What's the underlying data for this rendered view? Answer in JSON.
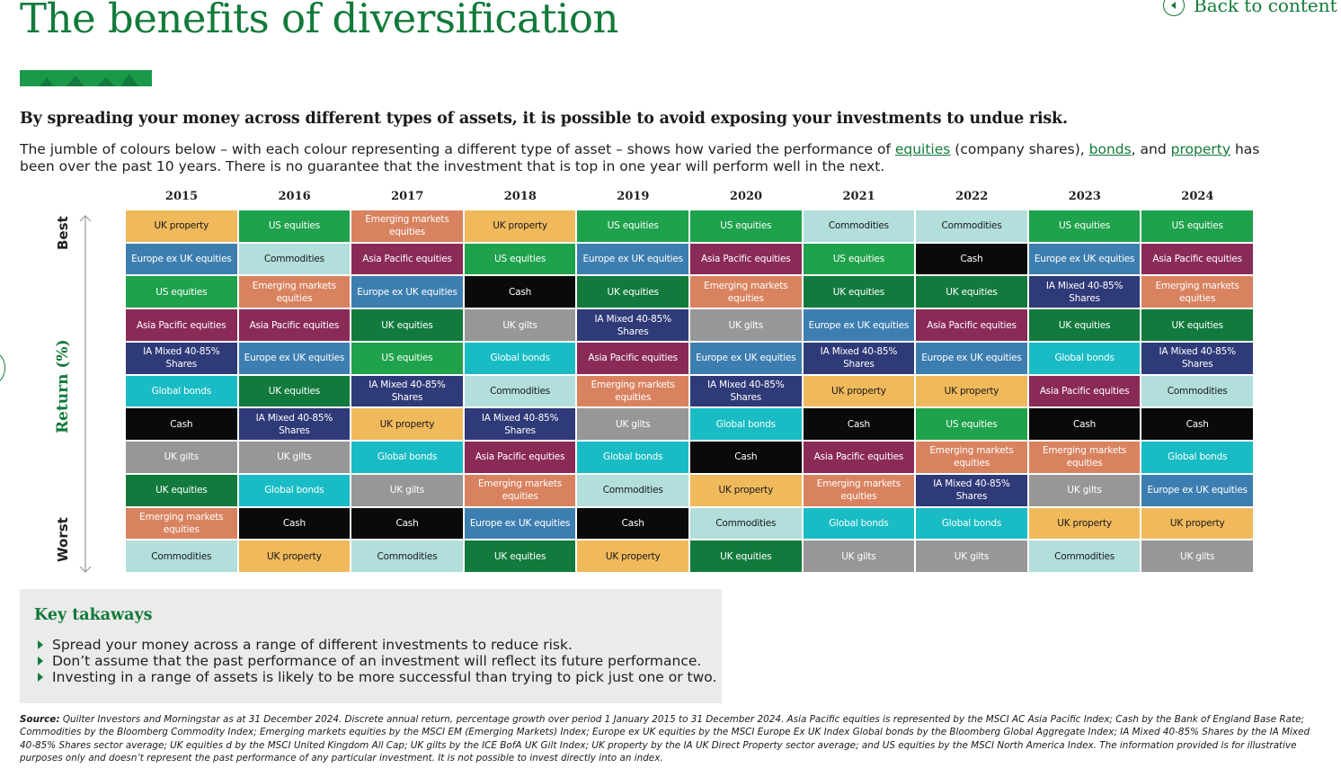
{
  "header": {
    "title": "The benefits of diversification",
    "back_link": "Back to content",
    "back_icon": "chevron-left-icon"
  },
  "lead": "By spreading your money across different types of assets, it is possible to avoid exposing your investments to undue risk.",
  "intro": {
    "text_1": "The jumble of colours below – with each colour representing a different type of asset – shows how varied the performance of ",
    "link_equities": "equities",
    "text_2": " (company shares), ",
    "link_bonds": "bonds",
    "text_3": ", and ",
    "link_property": "property",
    "text_4": " has been over the past 10 years. There is no guarantee that the investment that is top in one year will perform well in the next."
  },
  "colors": {
    "brand": "#127a3a",
    "UK property": "#f0b95c",
    "US equities": "#1ea24b",
    "Emerging markets equities": "#d9825f",
    "Europe ex UK equities": "#3d7eb0",
    "Commodities": "#b2dedb",
    "Asia Pacific equities": "#8a2a57",
    "Cash": "#0a0a0a",
    "UK equities": "#117a3c",
    "UK gilts": "#979797",
    "IA Mixed 40-85% Shares": "#2f3a78",
    "Global bonds": "#19bcc4"
  },
  "text_colors": {
    "UK property": "#1a1a1a",
    "Commodities": "#1a1a1a",
    "default": "#ffffff"
  },
  "chart_data": {
    "type": "table",
    "xlabel": "",
    "ylabel": "Return (%)",
    "y_top_label": "Best",
    "y_bottom_label": "Worst",
    "years": [
      "2015",
      "2016",
      "2017",
      "2018",
      "2019",
      "2020",
      "2021",
      "2022",
      "2023",
      "2024"
    ],
    "rankings": [
      [
        "UK property",
        "Europe ex UK equities",
        "US equities",
        "Asia Pacific equities",
        "IA Mixed 40-85% Shares",
        "Global bonds",
        "Cash",
        "UK gilts",
        "UK equities",
        "Emerging markets equities",
        "Commodities"
      ],
      [
        "US equities",
        "Commodities",
        "Emerging markets equities",
        "Asia Pacific equities",
        "Europe ex UK equities",
        "UK equities",
        "IA Mixed 40-85% Shares",
        "UK gilts",
        "Global bonds",
        "Cash",
        "UK property"
      ],
      [
        "Emerging markets equities",
        "Asia Pacific equities",
        "Europe ex UK equities",
        "UK equities",
        "US equities",
        "IA Mixed 40-85% Shares",
        "UK property",
        "Global bonds",
        "UK gilts",
        "Cash",
        "Commodities"
      ],
      [
        "UK property",
        "US equities",
        "Cash",
        "UK gilts",
        "Global bonds",
        "Commodities",
        "IA Mixed 40-85% Shares",
        "Asia Pacific equities",
        "Emerging markets equities",
        "Europe ex UK equities",
        "UK equities"
      ],
      [
        "US equities",
        "Europe ex UK equities",
        "UK equities",
        "IA Mixed 40-85% Shares",
        "Asia Pacific equities",
        "Emerging markets equities",
        "UK gilts",
        "Global bonds",
        "Commodities",
        "Cash",
        "UK property"
      ],
      [
        "US equities",
        "Asia Pacific equities",
        "Emerging markets equities",
        "UK gilts",
        "Europe ex UK equities",
        "IA Mixed 40-85% Shares",
        "Global bonds",
        "Cash",
        "UK property",
        "Commodities",
        "UK equities"
      ],
      [
        "Commodities",
        "US equities",
        "UK equities",
        "Europe ex UK equities",
        "IA Mixed 40-85% Shares",
        "UK property",
        "Cash",
        "Asia Pacific equities",
        "Emerging markets equities",
        "Global bonds",
        "UK gilts"
      ],
      [
        "Commodities",
        "Cash",
        "UK equities",
        "Asia Pacific equities",
        "Europe ex UK equities",
        "UK property",
        "US equities",
        "Emerging markets equities",
        "IA Mixed 40-85% Shares",
        "Global bonds",
        "UK gilts"
      ],
      [
        "US equities",
        "Europe ex UK equities",
        "IA Mixed 40-85% Shares",
        "UK equities",
        "Global bonds",
        "Asia Pacific equities",
        "Cash",
        "Emerging markets equities",
        "UK gilts",
        "UK property",
        "Commodities"
      ],
      [
        "US equities",
        "Asia Pacific equities",
        "Emerging markets equities",
        "UK equities",
        "IA Mixed 40-85% Shares",
        "Commodities",
        "Cash",
        "Global bonds",
        "Europe ex UK equities",
        "UK property",
        "UK gilts"
      ]
    ]
  },
  "takeaways": {
    "title": "Key takaways",
    "items": [
      "Spread your money across a range of different investments to reduce risk.",
      "Don’t assume that the past performance of an investment will reflect its future performance.",
      "Investing in a range of assets is likely to be more successful than trying to pick just one or two."
    ]
  },
  "source": {
    "label": "Source:",
    "text": " Quilter Investors and Morningstar as at 31 December 2024. Discrete annual return, percentage growth over period 1 January 2015 to 31 December 2024. Asia Pacific equities is represented by the MSCI AC Asia Pacific Index; Cash by the Bank of England Base Rate; Commodities by the Bloomberg Commodity Index; Emerging markets equities by the MSCI EM (Emerging Markets) Index; Europe ex UK equities by the MSCI Europe Ex UK Index Global bonds by the Bloomberg Global Aggregate Index; IA Mixed 40-85% Shares by the IA Mixed 40-85% Shares sector average; UK equities d by the MSCI United Kingdom All Cap; UK gilts by the ICE BofA UK Gilt Index; UK property by the IA UK Direct Property sector average; and US equities by the MSCI North America Index. The information provided is for illustrative purposes only and doesn’t represent the past performance of any particular investment. It is not possible to invest directly into an index."
  }
}
